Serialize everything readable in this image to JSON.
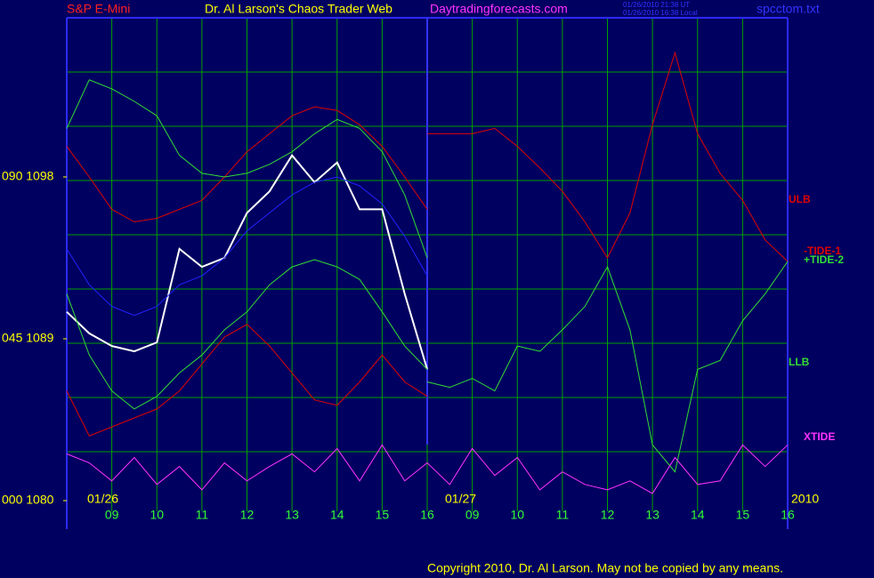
{
  "chart_data": {
    "type": "line",
    "source": "S&P E-Mini",
    "title": "Dr. Al Larson's Chaos Trader Web",
    "site": "Daytradingforecasts.com",
    "timestamps": [
      "01/26/2010 21:38 UT",
      "01/26/2010 16:38 Local"
    ],
    "file": "spcctom.txt",
    "date_labels": [
      "01/26",
      "01/27",
      "2010"
    ],
    "copyright": "Copyright 2010, Dr. Al Larson. May not be copied by any means.",
    "xlim": [
      0,
      16
    ],
    "xticks": [
      {
        "value": 1,
        "label": "09"
      },
      {
        "value": 2,
        "label": "10"
      },
      {
        "value": 3,
        "label": "11"
      },
      {
        "value": 4,
        "label": "12"
      },
      {
        "value": 5,
        "label": "13"
      },
      {
        "value": 6,
        "label": "14"
      },
      {
        "value": 7,
        "label": "15"
      },
      {
        "value": 8,
        "label": "16"
      },
      {
        "value": 9,
        "label": "09"
      },
      {
        "value": 10,
        "label": "10"
      },
      {
        "value": 11,
        "label": "11"
      },
      {
        "value": 12,
        "label": "12"
      },
      {
        "value": 13,
        "label": "13"
      },
      {
        "value": 14,
        "label": "14"
      },
      {
        "value": 15,
        "label": "15"
      },
      {
        "value": 16,
        "label": "16"
      }
    ],
    "ylim": [
      1080,
      1106.85
    ],
    "yticks": [
      {
        "value": 1098,
        "label": "090 1098"
      },
      {
        "value": 1089,
        "label": "045 1089"
      },
      {
        "value": 1080,
        "label": "000 1080"
      }
    ],
    "series": [
      {
        "color": "#ffffff",
        "x": [
          0,
          0.5,
          1,
          1.5,
          2,
          2.5,
          3,
          3.5,
          4,
          4.5,
          5,
          5.5,
          6,
          6.5,
          7,
          7.5,
          8
        ],
        "values": [
          1090.5,
          1089.3,
          1088.6,
          1088.3,
          1088.8,
          1094.0,
          1093.0,
          1093.5,
          1096.0,
          1097.2,
          1099.2,
          1097.7,
          1098.8,
          1096.2,
          1096.2,
          1091.5,
          1087.3
        ]
      },
      {
        "name": "ULB",
        "color": "#e00000",
        "x": [
          0,
          0.5,
          1,
          1.5,
          2,
          2.5,
          3,
          3.5,
          4,
          4.5,
          5,
          5.5,
          6,
          6.5,
          7,
          7.5,
          8
        ],
        "values": [
          1099.7,
          1098.0,
          1096.2,
          1095.5,
          1095.7,
          1096.2,
          1096.7,
          1098.0,
          1099.4,
          1100.4,
          1101.4,
          1101.9,
          1101.7,
          1100.9,
          1099.7,
          1098.0,
          1096.2
        ]
      },
      {
        "color": "#33dd33",
        "x": [
          0,
          0.5,
          1,
          1.5,
          2,
          2.5,
          3,
          3.5,
          4,
          4.5,
          5,
          5.5,
          6,
          6.5,
          7,
          7.5,
          8
        ],
        "values": [
          1100.7,
          1103.4,
          1102.9,
          1102.2,
          1101.4,
          1099.2,
          1098.2,
          1098.0,
          1098.2,
          1098.7,
          1099.4,
          1100.4,
          1101.2,
          1100.7,
          1099.4,
          1097.0,
          1093.5
        ]
      },
      {
        "color": "#2222ff",
        "x": [
          0,
          0.5,
          1,
          1.5,
          2,
          2.5,
          3,
          3.5,
          4,
          4.5,
          5,
          5.5,
          6,
          6.5,
          7,
          7.5,
          8
        ],
        "values": [
          1094.0,
          1092.0,
          1090.8,
          1090.3,
          1090.8,
          1092.0,
          1092.5,
          1093.5,
          1095.0,
          1096.0,
          1097.0,
          1097.7,
          1098.0,
          1097.5,
          1096.5,
          1094.7,
          1092.5
        ]
      },
      {
        "name": "LLB",
        "color": "#33dd33",
        "x": [
          0,
          0.5,
          1,
          1.5,
          2,
          2.5,
          3,
          3.5,
          4,
          4.5,
          5,
          5.5,
          6,
          6.5,
          7,
          7.5,
          8
        ],
        "values": [
          1091.5,
          1088.1,
          1086.1,
          1085.1,
          1085.8,
          1087.1,
          1088.1,
          1089.5,
          1090.5,
          1092.0,
          1093.0,
          1093.4,
          1093.0,
          1092.3,
          1090.5,
          1088.6,
          1087.3
        ]
      },
      {
        "color": "#e00000",
        "x": [
          0,
          0.5,
          1,
          1.5,
          2,
          2.5,
          3,
          3.5,
          4,
          4.5,
          5,
          5.5,
          6,
          6.5,
          7,
          7.5,
          8
        ],
        "values": [
          1086.1,
          1083.6,
          1084.1,
          1084.6,
          1085.1,
          1086.1,
          1087.6,
          1089.1,
          1089.8,
          1088.6,
          1087.1,
          1085.6,
          1085.3,
          1086.6,
          1088.1,
          1086.6,
          1085.8
        ]
      },
      {
        "name": "-TIDE-1",
        "color": "#e00000",
        "x": [
          8,
          8.5,
          9,
          9.5,
          10,
          10.5,
          11,
          11.5,
          12,
          12.5,
          13,
          13.5,
          14,
          14.5,
          15,
          15.5,
          16
        ],
        "values": [
          1100.4,
          1100.4,
          1100.4,
          1100.7,
          1099.7,
          1098.5,
          1097.2,
          1095.5,
          1093.5,
          1096.0,
          1100.9,
          1104.9,
          1100.4,
          1098.2,
          1096.7,
          1094.5,
          1093.3
        ]
      },
      {
        "name": "+TIDE-2",
        "color": "#33dd33",
        "x": [
          8,
          8.5,
          9,
          9.5,
          10,
          10.5,
          11,
          11.5,
          12,
          12.5,
          13,
          13.5,
          14,
          14.5,
          15,
          15.5,
          16
        ],
        "values": [
          1086.6,
          1086.3,
          1086.8,
          1086.1,
          1088.6,
          1088.3,
          1089.5,
          1090.8,
          1093.0,
          1089.5,
          1083.1,
          1081.6,
          1087.3,
          1087.8,
          1090.0,
          1091.5,
          1093.3
        ]
      },
      {
        "name": "XTIDE",
        "color": "#ff33ff",
        "x": [
          0,
          0.5,
          1,
          1.5,
          2,
          2.5,
          3,
          3.5,
          4,
          4.5,
          5,
          5.5,
          6,
          6.5,
          7,
          7.5,
          8,
          8.5,
          9,
          9.5,
          10,
          10.5,
          11,
          11.5,
          12,
          12.5,
          13,
          13.5,
          14,
          14.5,
          15,
          15.5,
          16
        ],
        "values": [
          1082.6,
          1082.1,
          1081.1,
          1082.4,
          1080.9,
          1081.9,
          1080.6,
          1082.1,
          1081.1,
          1081.9,
          1082.6,
          1081.6,
          1082.9,
          1081.1,
          1083.1,
          1081.1,
          1082.1,
          1080.9,
          1082.9,
          1081.4,
          1082.4,
          1080.6,
          1081.6,
          1080.9,
          1080.6,
          1081.1,
          1080.4,
          1082.4,
          1080.9,
          1081.1,
          1083.1,
          1081.9,
          1083.1
        ]
      }
    ]
  }
}
